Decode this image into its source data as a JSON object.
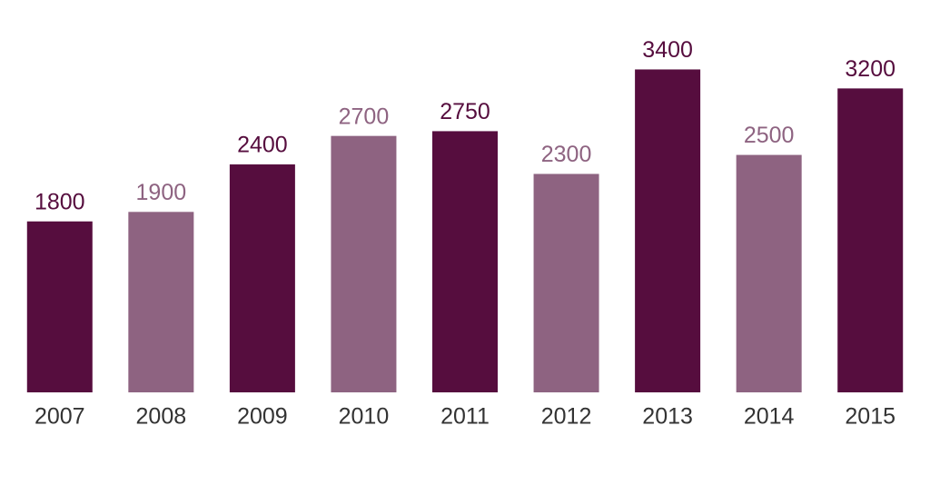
{
  "chart_data": {
    "type": "bar",
    "categories": [
      "2007",
      "2008",
      "2009",
      "2010",
      "2011",
      "2012",
      "2013",
      "2014",
      "2015"
    ],
    "values": [
      1800,
      1900,
      2400,
      2700,
      2750,
      2300,
      3400,
      2500,
      3200
    ],
    "colors": [
      "#560d3e",
      "#8e6381",
      "#560d3e",
      "#8e6381",
      "#560d3e",
      "#8e6381",
      "#560d3e",
      "#8e6381",
      "#560d3e"
    ],
    "ylim": [
      0,
      3500
    ]
  }
}
